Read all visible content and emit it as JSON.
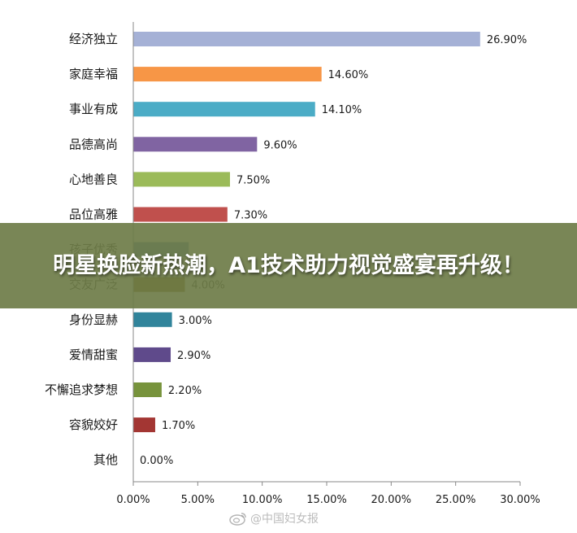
{
  "chart_data": {
    "type": "bar",
    "orientation": "horizontal",
    "categories": [
      "经济独立",
      "家庭幸福",
      "事业有成",
      "品德高尚",
      "心地善良",
      "品位高雅",
      "孩子优秀",
      "交友广泛",
      "身份显赫",
      "爱情甜蜜",
      "不懈追求梦想",
      "容貌姣好",
      "其他"
    ],
    "values": [
      26.9,
      14.6,
      14.1,
      9.6,
      7.5,
      7.3,
      4.3,
      4.0,
      3.0,
      2.9,
      2.2,
      1.7,
      0.0
    ],
    "value_labels": [
      "26.90%",
      "14.60%",
      "14.10%",
      "9.60%",
      "7.50%",
      "7.30%",
      "",
      "4.00%",
      "3.00%",
      "2.90%",
      "2.20%",
      "1.70%",
      "0.00%"
    ],
    "colors": [
      "#a5b1d6",
      "#f79646",
      "#4bacc6",
      "#8064a2",
      "#9bbb59",
      "#c0504d",
      "#4f81bd",
      "#7f6000",
      "#31849b",
      "#5f4a8b",
      "#77933c",
      "#a33633",
      "#4f81bd"
    ],
    "xlim": [
      0,
      30
    ],
    "xticks": [
      "0.00%",
      "5.00%",
      "10.00%",
      "15.00%",
      "20.00%",
      "25.00%",
      "30.00%"
    ],
    "grid": false
  },
  "banner": {
    "title": "明星换脸新热潮，A1技术助力视觉盛宴再升级！"
  },
  "watermark": {
    "text": "@中国妇女报",
    "icon": "weibo-icon"
  }
}
